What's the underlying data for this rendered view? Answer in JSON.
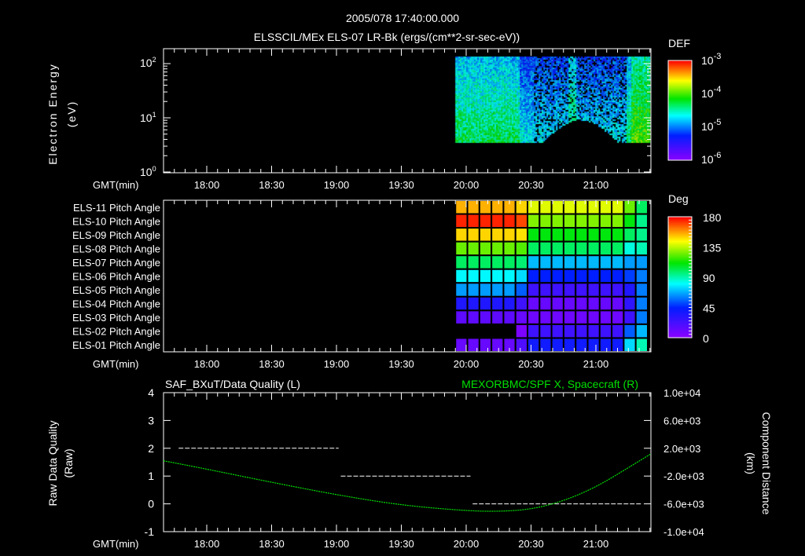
{
  "header": {
    "timestamp": "2005/078 17:40:00.000",
    "title": "ELSSCIL/MEx ELS-07 LR-Bk  (ergs/(cm**2-sr-sec-eV))"
  },
  "chart_data": [
    {
      "type": "heatmap",
      "name": "electron-energy-spectrogram",
      "ylabel": "Electron Energy",
      "yunits": "(eV)",
      "yscale": "log",
      "ylim": [
        1,
        190
      ],
      "yticks": [
        {
          "base": "10",
          "exp": "0"
        },
        {
          "base": "10",
          "exp": "1"
        },
        {
          "base": "10",
          "exp": "2"
        }
      ],
      "xlabel": "GMT(min)",
      "xlim": [
        "17:40",
        "21:26"
      ],
      "xticks": [
        "18:00",
        "18:30",
        "19:00",
        "19:30",
        "20:00",
        "20:30",
        "21:00"
      ],
      "data_start": "19:55",
      "data_end": "21:25",
      "colorbar": {
        "label": "DEF",
        "scale": "log",
        "range": [
          1e-06,
          0.001
        ],
        "ticks": [
          {
            "base": "10",
            "exp": "-3"
          },
          {
            "base": "10",
            "exp": "-4"
          },
          {
            "base": "10",
            "exp": "-5"
          },
          {
            "base": "10",
            "exp": "-6"
          }
        ]
      }
    },
    {
      "type": "heatmap",
      "name": "pitch-angle",
      "rows": [
        "ELS-11 Pitch Angle",
        "ELS-10 Pitch Angle",
        "ELS-09 Pitch Angle",
        "ELS-08 Pitch Angle",
        "ELS-07 Pitch Angle",
        "ELS-06 Pitch Angle",
        "ELS-05 Pitch Angle",
        "ELS-04 Pitch Angle",
        "ELS-03 Pitch Angle",
        "ELS-02 Pitch Angle",
        "ELS-01 Pitch Angle"
      ],
      "xlabel": "GMT(min)",
      "xlim": [
        "17:40",
        "21:26"
      ],
      "xticks": [
        "18:00",
        "18:30",
        "19:00",
        "19:30",
        "20:00",
        "20:30",
        "21:00"
      ],
      "time_start": "19:55",
      "time_end": "21:24",
      "values": [
        [
          155,
          155,
          155,
          155,
          155,
          150,
          140,
          140,
          140,
          140,
          140,
          140,
          140,
          140,
          125,
          100
        ],
        [
          175,
          175,
          175,
          175,
          175,
          170,
          128,
          128,
          128,
          128,
          128,
          128,
          128,
          128,
          110,
          95
        ],
        [
          150,
          150,
          150,
          150,
          150,
          148,
          110,
          110,
          110,
          110,
          110,
          110,
          110,
          110,
          100,
          95
        ],
        [
          125,
          125,
          125,
          125,
          125,
          122,
          100,
          100,
          100,
          100,
          100,
          100,
          100,
          100,
          85,
          90
        ],
        [
          100,
          100,
          100,
          100,
          100,
          98,
          70,
          70,
          70,
          70,
          70,
          70,
          70,
          70,
          65,
          65
        ],
        [
          80,
          80,
          80,
          80,
          80,
          75,
          45,
          45,
          45,
          45,
          45,
          45,
          45,
          45,
          50,
          60
        ],
        [
          65,
          65,
          65,
          65,
          65,
          55,
          25,
          25,
          25,
          25,
          25,
          25,
          25,
          25,
          35,
          60
        ],
        [
          35,
          35,
          35,
          35,
          35,
          25,
          12,
          12,
          12,
          12,
          12,
          12,
          12,
          12,
          30,
          60
        ],
        [
          15,
          15,
          15,
          15,
          15,
          12,
          10,
          10,
          10,
          10,
          10,
          10,
          10,
          10,
          25,
          60
        ],
        [
          null,
          null,
          null,
          null,
          null,
          5,
          25,
          25,
          25,
          25,
          25,
          25,
          25,
          25,
          55,
          70
        ],
        [
          12,
          12,
          12,
          12,
          12,
          20,
          40,
          40,
          40,
          40,
          40,
          40,
          40,
          40,
          75,
          90
        ]
      ],
      "colorbar": {
        "label": "Deg",
        "range": [
          0,
          180
        ],
        "ticks": [
          "180",
          "135",
          "90",
          "45",
          "0"
        ]
      }
    },
    {
      "type": "line",
      "name": "data-quality-and-spacecraft-x",
      "title_left": "SAF_BXuT/Data Quality (L)",
      "title_right": "MEXORBMC/SPF X, Spacecraft (R)",
      "ylabel_left": "Raw Data Quality",
      "yunits_left": "(Raw)",
      "ylabel_right": "Component Distance",
      "yunits_right": "(km)",
      "ylim_left": [
        -1,
        4
      ],
      "yticks_left": [
        "4",
        "3",
        "2",
        "1",
        "0",
        "-1"
      ],
      "ylim_right": [
        -10000,
        10000
      ],
      "yticks_right": [
        "1.0e+04",
        "6.0e+03",
        "2.0e+03",
        "-2.0e+03",
        "-6.0e+03",
        "-1.0e+04"
      ],
      "xlabel": "GMT(min)",
      "xticks": [
        "18:00",
        "18:30",
        "19:00",
        "19:30",
        "20:00",
        "20:30",
        "21:00"
      ],
      "series": [
        {
          "name": "Data Quality",
          "axis": "left",
          "color": "#ffffff",
          "segments": [
            {
              "start": "17:47",
              "end": "19:01",
              "value": 2
            },
            {
              "start": "19:02",
              "end": "20:02",
              "value": 1
            },
            {
              "start": "20:03",
              "end": "21:21",
              "value": 0
            }
          ]
        },
        {
          "name": "SPF X, Spacecraft",
          "axis": "right",
          "color": "#00e000",
          "x": [
            "17:40",
            "18:00",
            "18:30",
            "19:00",
            "19:30",
            "20:00",
            "20:15",
            "20:30",
            "20:45",
            "21:00",
            "21:15",
            "21:26"
          ],
          "y": [
            200,
            -1000,
            -2900,
            -4700,
            -6200,
            -7000,
            -7100,
            -6800,
            -5600,
            -3600,
            -800,
            1200
          ]
        }
      ]
    }
  ]
}
